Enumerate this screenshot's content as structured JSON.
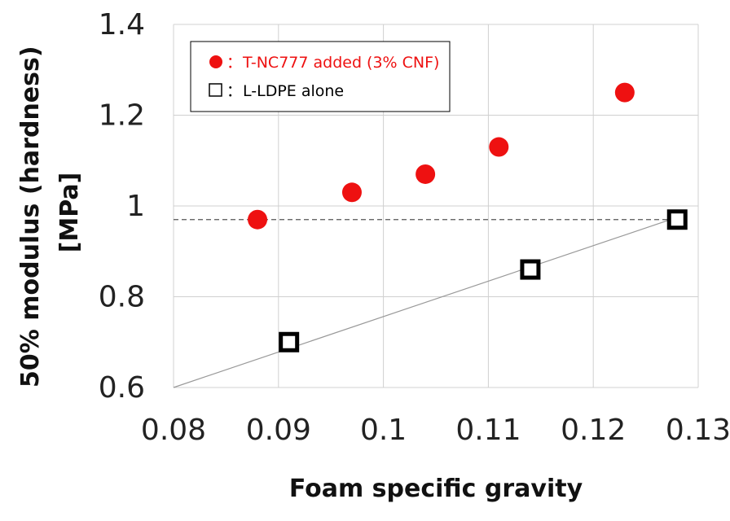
{
  "chart_data": {
    "type": "scatter",
    "xlabel": "Foam specific gravity",
    "ylabel_lines": [
      "50% modulus (hardness)",
      "[MPa]"
    ],
    "xlim": [
      0.08,
      0.13
    ],
    "ylim": [
      0.6,
      1.4
    ],
    "x_ticks": [
      0.08,
      0.09,
      0.1,
      0.11,
      0.12,
      0.13
    ],
    "x_tick_labels": [
      "0.08",
      "0.09",
      "0.1",
      "0.11",
      "0.12",
      "0.13"
    ],
    "y_ticks": [
      0.6,
      0.8,
      1.0,
      1.2,
      1.4
    ],
    "y_tick_labels": [
      "0.6",
      "0.8",
      "1",
      "1.2",
      "1.4"
    ],
    "grid": true,
    "legend_position": "top-left",
    "series": [
      {
        "name": "T-NC777 added (3% CNF)",
        "marker": "filled-circle",
        "color": "#ee1111",
        "x": [
          0.088,
          0.097,
          0.104,
          0.111,
          0.123
        ],
        "y": [
          0.97,
          1.03,
          1.07,
          1.13,
          1.25
        ]
      },
      {
        "name": "L-LDPE alone",
        "marker": "open-square",
        "color": "#000000",
        "x": [
          0.091,
          0.114,
          0.128
        ],
        "y": [
          0.7,
          0.86,
          0.97
        ]
      }
    ],
    "reference_lines": [
      {
        "style": "dashed",
        "color": "#555555",
        "x": [
          0.08,
          0.128
        ],
        "y": [
          0.97,
          0.97
        ]
      },
      {
        "style": "solid",
        "color": "#999999",
        "x": [
          0.08,
          0.128
        ],
        "y": [
          0.6,
          0.975
        ]
      }
    ],
    "legend": {
      "entries": [
        {
          "symbol": "●",
          "separator": "：",
          "label": "T-NC777 added (3% CNF)",
          "color": "#ee1111"
        },
        {
          "symbol": "□",
          "separator": "：",
          "label": "L-LDPE alone",
          "color": "#000000"
        }
      ]
    }
  }
}
